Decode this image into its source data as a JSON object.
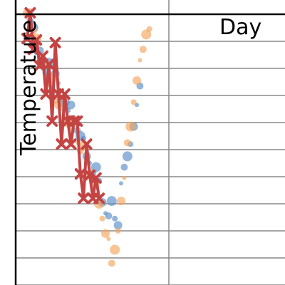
{
  "chart_data": {
    "type": "scatter",
    "title": "",
    "xlabel": "Day",
    "ylabel": "Temperature",
    "grid": {
      "horizontal": true,
      "vertical": true
    },
    "colors": {
      "series_blue": "#5b8ec7",
      "series_orange": "#f5a45c",
      "series_dark_orange": "#dd8844",
      "line": "#c44444",
      "grid": "#888888",
      "axis": "#000000"
    },
    "series": [
      {
        "kind": "points",
        "color_key": "series_blue",
        "points": [
          [
            1,
            19.9
          ],
          [
            2,
            19.4
          ],
          [
            3,
            18.9
          ],
          [
            4,
            17.1
          ],
          [
            5,
            17.2
          ],
          [
            6,
            16.1
          ],
          [
            7,
            15.6
          ],
          [
            8,
            16.3
          ],
          [
            9,
            14.5
          ],
          [
            10,
            15.5
          ],
          [
            11,
            14.8
          ],
          [
            12,
            13.3
          ],
          [
            13,
            13.4
          ],
          [
            14,
            12.8
          ],
          [
            15,
            13.2
          ],
          [
            16,
            12.3
          ],
          [
            17,
            11.3
          ],
          [
            18,
            10.9
          ],
          [
            19,
            10.7
          ],
          [
            20,
            9.4
          ],
          [
            21,
            8.9
          ],
          [
            22,
            8.2
          ],
          [
            23,
            8.6
          ],
          [
            24,
            7.6
          ],
          [
            25,
            6.0
          ],
          [
            26,
            5.2
          ],
          [
            27,
            5.0
          ],
          [
            28,
            6.1
          ],
          [
            29,
            4.8
          ],
          [
            30,
            4.3
          ],
          [
            31,
            7.4
          ],
          [
            32,
            8.6
          ],
          [
            33,
            9.4
          ],
          [
            34,
            10.3
          ],
          [
            35,
            11.6
          ],
          [
            36,
            13.2
          ],
          [
            37,
            14.6
          ]
        ]
      },
      {
        "kind": "points",
        "color_key": "series_orange",
        "points": [
          [
            1,
            20.0
          ],
          [
            2,
            20.2
          ],
          [
            3,
            18.7
          ],
          [
            4,
            18.1
          ],
          [
            5,
            16.3
          ],
          [
            6,
            16.2
          ],
          [
            7,
            15.2
          ],
          [
            8,
            14.8
          ],
          [
            9,
            15.2
          ],
          [
            10,
            13.5
          ],
          [
            11,
            13.2
          ],
          [
            12,
            12.9
          ],
          [
            13,
            13.6
          ],
          [
            14,
            11.9
          ],
          [
            15,
            11.5
          ],
          [
            16,
            12.1
          ],
          [
            17,
            10.4
          ],
          [
            18,
            9.8
          ],
          [
            19,
            10.2
          ],
          [
            20,
            8.9
          ],
          [
            21,
            8.0
          ],
          [
            22,
            8.3
          ],
          [
            23,
            7.3
          ],
          [
            24,
            5.9
          ],
          [
            25,
            4.8
          ],
          [
            26,
            3.7
          ],
          [
            27,
            3.3
          ],
          [
            28,
            1.5
          ],
          [
            29,
            2.5
          ],
          [
            30,
            3.9
          ],
          [
            31,
            6.1
          ],
          [
            32,
            7.8
          ],
          [
            33,
            10.4
          ],
          [
            34,
            11.6
          ],
          [
            35,
            13.4
          ],
          [
            36,
            15.0
          ],
          [
            37,
            16.5
          ],
          [
            38,
            17.3
          ],
          [
            39,
            18.4
          ],
          [
            40,
            18.8
          ]
        ]
      },
      {
        "kind": "line",
        "color_key": "line",
        "marker": "x",
        "points": [
          [
            1,
            18.1
          ],
          [
            2,
            20.0
          ],
          [
            3,
            17.3
          ],
          [
            4,
            18.0
          ],
          [
            5,
            16.1
          ],
          [
            6,
            16.8
          ],
          [
            7,
            14.0
          ],
          [
            8,
            16.2
          ],
          [
            9,
            12.0
          ],
          [
            10,
            17.8
          ],
          [
            11,
            14.0
          ],
          [
            12,
            10.3
          ],
          [
            13,
            14.0
          ],
          [
            14,
            12.0
          ],
          [
            15,
            10.3
          ],
          [
            16,
            12.0
          ],
          [
            17,
            12.0
          ],
          [
            18,
            8.1
          ],
          [
            19,
            6.3
          ],
          [
            20,
            10.3
          ],
          [
            21,
            8.0
          ],
          [
            22,
            6.3
          ],
          [
            23,
            7.8
          ],
          [
            24,
            6.3
          ]
        ]
      }
    ]
  }
}
